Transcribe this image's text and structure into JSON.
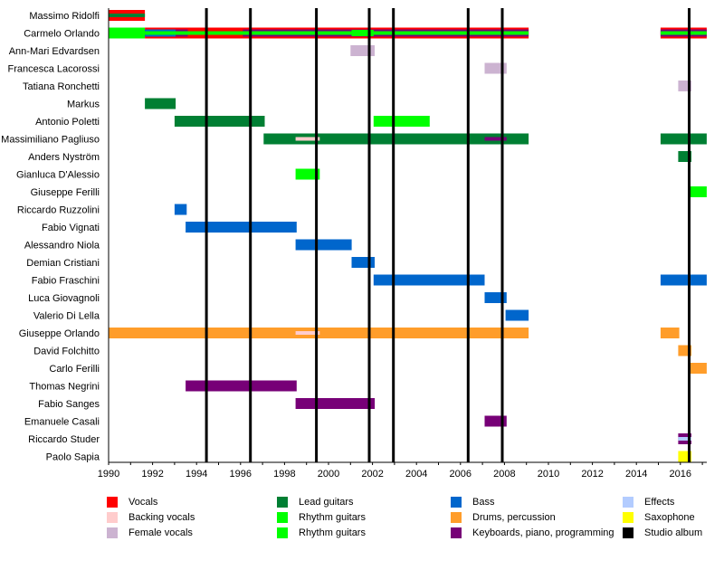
{
  "chart_data": {
    "type": "timeline",
    "title": "",
    "xlim": [
      1990,
      2017.2
    ],
    "x_ticks": [
      "1990",
      "1992",
      "1994",
      "1996",
      "1998",
      "2000",
      "2002",
      "2004",
      "2006",
      "2008",
      "2010",
      "2012",
      "2014",
      "2016"
    ],
    "roles": {
      "vocals": {
        "label": "Vocals",
        "color": "#ff0000"
      },
      "backing": {
        "label": "Backing vocals",
        "color": "#ffcccc"
      },
      "female": {
        "label": "Female vocals",
        "color": "#ccb3d1"
      },
      "lead": {
        "label": "Lead guitars",
        "color": "#007f33"
      },
      "rhythm": {
        "label": "Rhythm guitars",
        "color": "#00ff00"
      },
      "rhythm2": {
        "label": "Rhythm guitars",
        "color": "#00ff00"
      },
      "bass": {
        "label": "Bass",
        "color": "#0066cc"
      },
      "drums": {
        "label": "Drums, percussion",
        "color": "#ff9d2a"
      },
      "keys": {
        "label": "Keyboards, piano, programming",
        "color": "#770077"
      },
      "effects": {
        "label": "Effects",
        "color": "#b3ccff"
      },
      "sax": {
        "label": "Saxophone",
        "color": "#ffff00"
      },
      "album": {
        "label": "Studio album",
        "color": "#000000"
      }
    },
    "legend_order": [
      [
        "vocals",
        "backing",
        "female"
      ],
      [
        "lead",
        "rhythm",
        "rhythm2"
      ],
      [
        "bass",
        "drums",
        "keys"
      ],
      [
        "effects",
        "sax",
        "album"
      ]
    ],
    "albums": [
      1994.45,
      1996.45,
      1999.45,
      2001.85,
      2002.95,
      2006.35,
      2007.9,
      2016.4
    ],
    "members": [
      {
        "name": "Massimo Ridolfi",
        "bars": [
          {
            "role": "vocals",
            "start": 1990,
            "end": 1991.65
          },
          {
            "role": "lead",
            "start": 1990,
            "end": 1991.65,
            "layer": "inner"
          }
        ]
      },
      {
        "name": "Carmelo Orlando",
        "bars": [
          {
            "role": "rhythm",
            "start": 1990,
            "end": 1991.65
          },
          {
            "role": "vocals",
            "start": 1991.65,
            "end": 2009.1
          },
          {
            "role": "keys",
            "start": 1991.65,
            "end": 2009.1,
            "layer": "mid"
          },
          {
            "role": "bass",
            "start": 1991.65,
            "end": 1993.05,
            "layer": "mid"
          },
          {
            "role": "vocals",
            "start": 1993.6,
            "end": 1996.1,
            "layer": "mid"
          },
          {
            "role": "rhythm",
            "start": 1991.65,
            "end": 2009.1,
            "layer": "inner"
          },
          {
            "role": "rhythm",
            "start": 2001.05,
            "end": 2002.05,
            "layer": "wide"
          },
          {
            "role": "vocals",
            "start": 2015.1,
            "end": 2017.2
          },
          {
            "role": "keys",
            "start": 2015.1,
            "end": 2017.2,
            "layer": "mid"
          },
          {
            "role": "rhythm",
            "start": 2015.1,
            "end": 2017.2,
            "layer": "inner"
          }
        ]
      },
      {
        "name": "Ann-Mari Edvardsen",
        "bars": [
          {
            "role": "female",
            "start": 2001.0,
            "end": 2002.1
          }
        ]
      },
      {
        "name": "Francesca Lacorossi",
        "bars": [
          {
            "role": "female",
            "start": 2007.1,
            "end": 2008.1
          }
        ]
      },
      {
        "name": "Tatiana Ronchetti",
        "bars": [
          {
            "role": "female",
            "start": 2015.9,
            "end": 2016.5
          }
        ]
      },
      {
        "name": "Markus",
        "bars": [
          {
            "role": "lead",
            "start": 1991.65,
            "end": 1993.05
          }
        ]
      },
      {
        "name": "Antonio Poletti",
        "bars": [
          {
            "role": "lead",
            "start": 1993.0,
            "end": 1997.1
          },
          {
            "role": "rhythm",
            "start": 2002.05,
            "end": 2004.6
          }
        ]
      },
      {
        "name": "Massimiliano Pagliuso",
        "bars": [
          {
            "role": "lead",
            "start": 1997.05,
            "end": 2009.1
          },
          {
            "role": "backing",
            "start": 1998.5,
            "end": 1999.6,
            "layer": "thin"
          },
          {
            "role": "keys",
            "start": 2007.1,
            "end": 2008.1,
            "layer": "thin"
          },
          {
            "role": "lead",
            "start": 2015.1,
            "end": 2017.2
          }
        ]
      },
      {
        "name": "Anders Nyström",
        "bars": [
          {
            "role": "lead",
            "start": 2015.9,
            "end": 2016.5
          }
        ]
      },
      {
        "name": "Gianluca D'Alessio",
        "bars": [
          {
            "role": "rhythm",
            "start": 1998.5,
            "end": 1999.6
          }
        ]
      },
      {
        "name": "Giuseppe Ferilli",
        "bars": [
          {
            "role": "rhythm",
            "start": 2016.4,
            "end": 2017.2
          }
        ]
      },
      {
        "name": "Riccardo Ruzzolini",
        "bars": [
          {
            "role": "bass",
            "start": 1993.0,
            "end": 1993.55
          }
        ]
      },
      {
        "name": "Fabio Vignati",
        "bars": [
          {
            "role": "bass",
            "start": 1993.5,
            "end": 1998.55
          }
        ]
      },
      {
        "name": "Alessandro Niola",
        "bars": [
          {
            "role": "bass",
            "start": 1998.5,
            "end": 2001.05
          }
        ]
      },
      {
        "name": "Demian Cristiani",
        "bars": [
          {
            "role": "bass",
            "start": 2001.05,
            "end": 2002.1
          }
        ]
      },
      {
        "name": "Fabio Fraschini",
        "bars": [
          {
            "role": "bass",
            "start": 2002.05,
            "end": 2007.1
          },
          {
            "role": "bass",
            "start": 2015.1,
            "end": 2017.2
          }
        ]
      },
      {
        "name": "Luca Giovagnoli",
        "bars": [
          {
            "role": "bass",
            "start": 2007.1,
            "end": 2008.1
          }
        ]
      },
      {
        "name": "Valerio Di Lella",
        "bars": [
          {
            "role": "bass",
            "start": 2008.05,
            "end": 2009.1
          }
        ]
      },
      {
        "name": "Giuseppe Orlando",
        "bars": [
          {
            "role": "drums",
            "start": 1990,
            "end": 2009.1
          },
          {
            "role": "backing",
            "start": 1998.5,
            "end": 1999.6,
            "layer": "thin"
          },
          {
            "role": "drums",
            "start": 2015.1,
            "end": 2015.95
          }
        ]
      },
      {
        "name": "David Folchitto",
        "bars": [
          {
            "role": "drums",
            "start": 2015.9,
            "end": 2016.5
          }
        ]
      },
      {
        "name": "Carlo Ferilli",
        "bars": [
          {
            "role": "drums",
            "start": 2016.4,
            "end": 2017.2
          }
        ]
      },
      {
        "name": "Thomas Negrini",
        "bars": [
          {
            "role": "keys",
            "start": 1993.5,
            "end": 1998.55
          }
        ]
      },
      {
        "name": "Fabio Sanges",
        "bars": [
          {
            "role": "keys",
            "start": 1998.5,
            "end": 2002.1
          }
        ]
      },
      {
        "name": "Emanuele Casali",
        "bars": [
          {
            "role": "keys",
            "start": 2007.1,
            "end": 2008.1
          }
        ]
      },
      {
        "name": "Riccardo Studer",
        "bars": [
          {
            "role": "keys",
            "start": 2015.9,
            "end": 2016.5
          },
          {
            "role": "effects",
            "start": 2015.9,
            "end": 2016.5,
            "layer": "inner"
          }
        ]
      },
      {
        "name": "Paolo Sapia",
        "bars": [
          {
            "role": "sax",
            "start": 2015.9,
            "end": 2016.5
          }
        ]
      }
    ]
  }
}
